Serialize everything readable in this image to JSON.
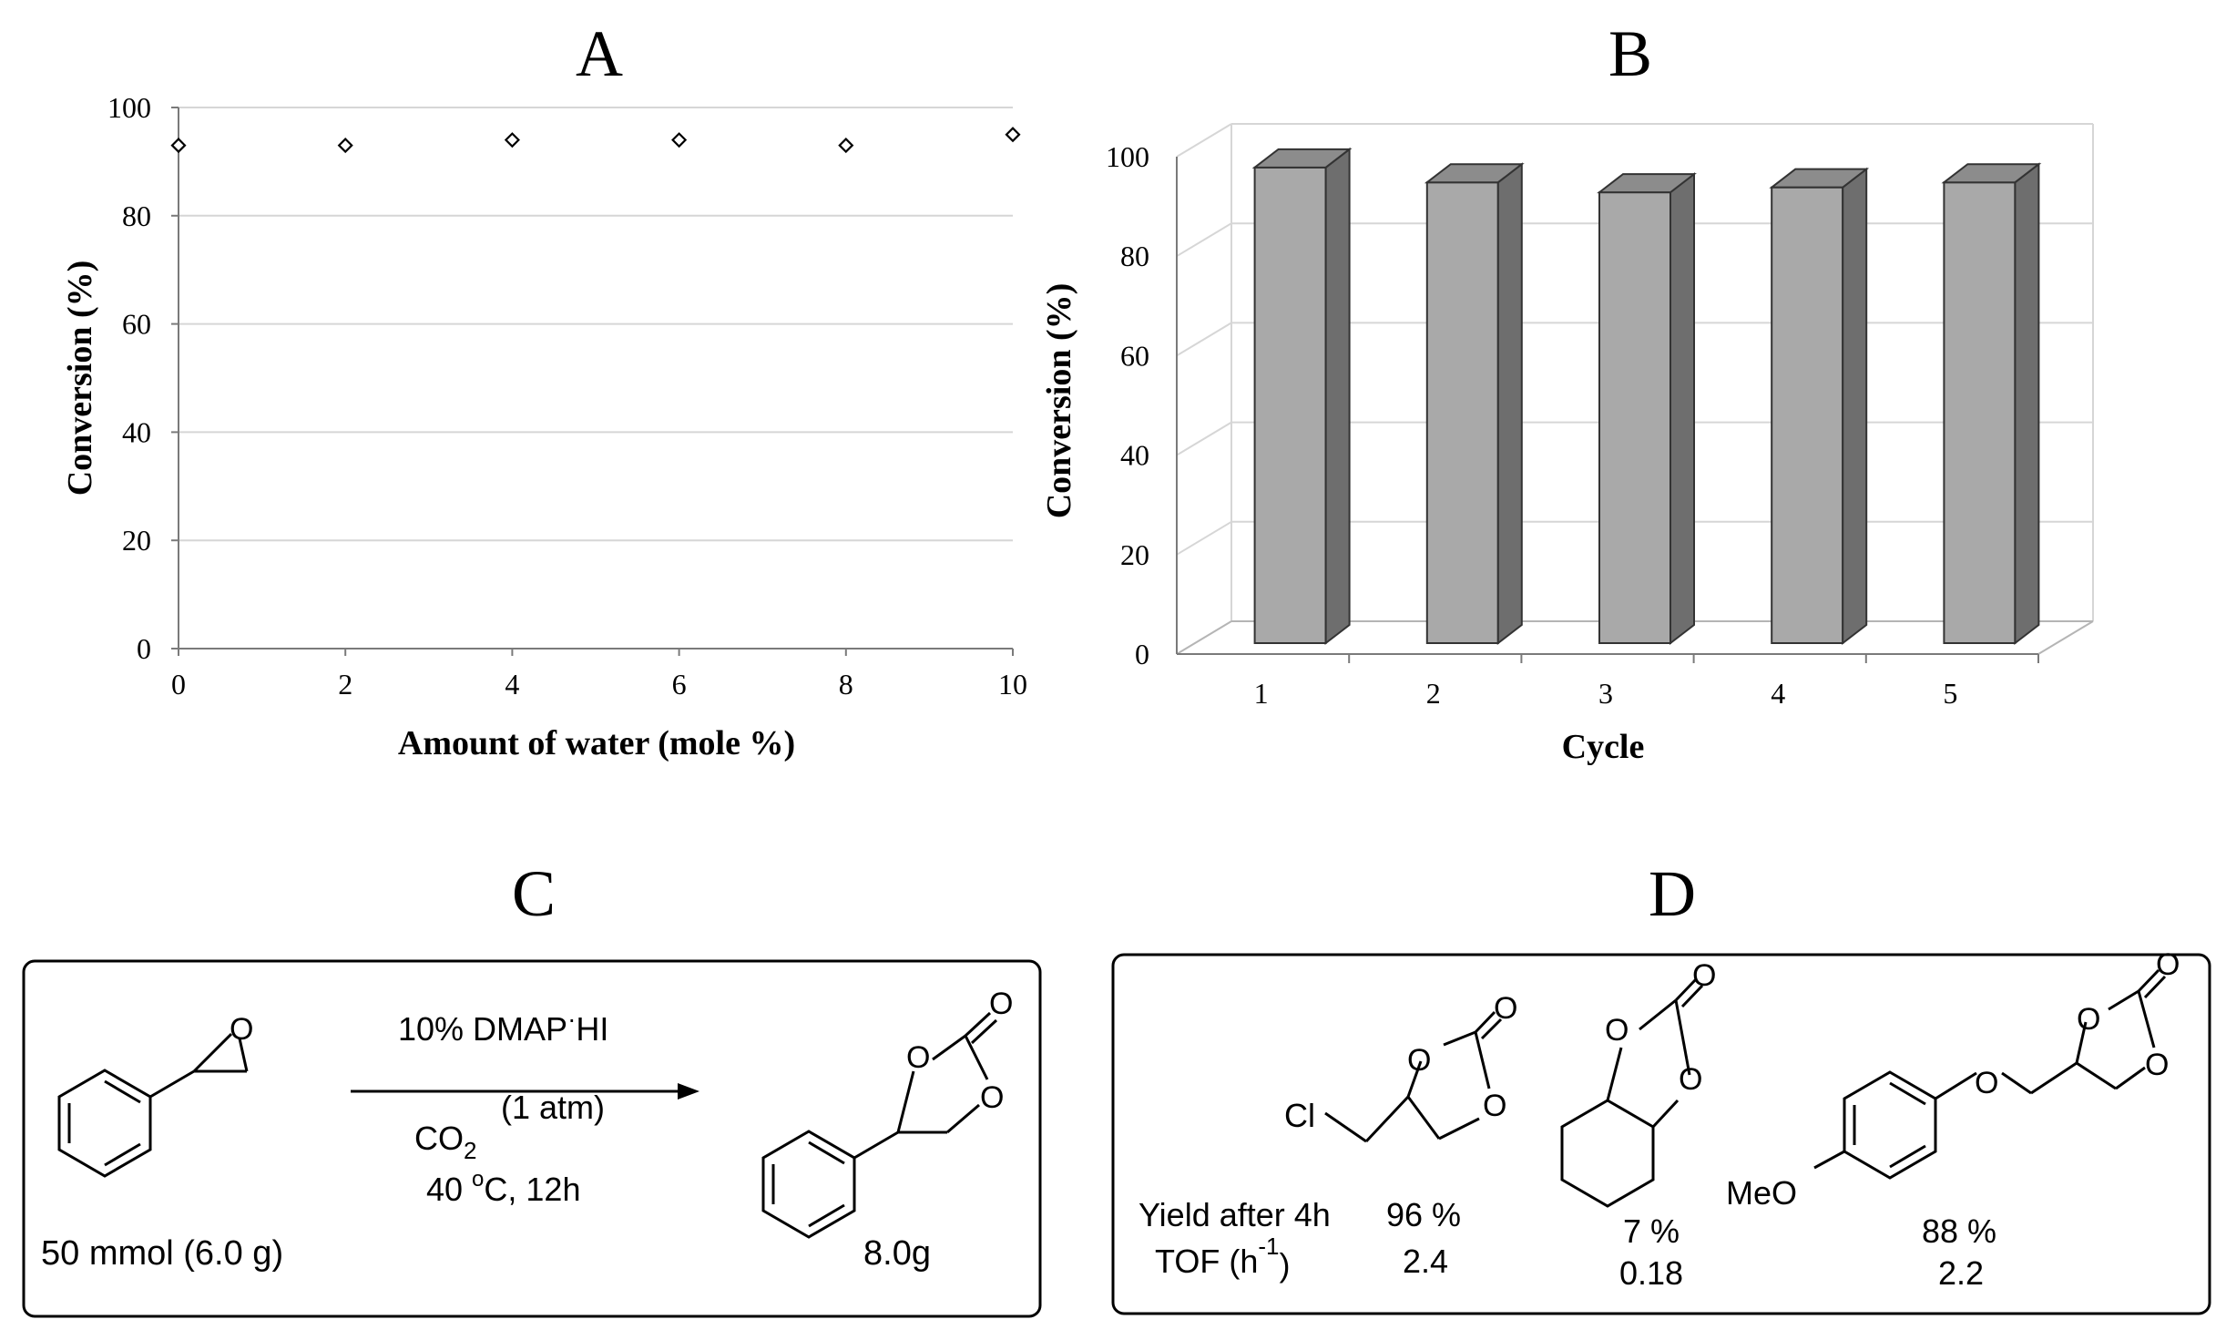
{
  "chart_data": [
    {
      "panel": "A",
      "type": "scatter",
      "xlabel": "Amount of  water (mole %)",
      "ylabel": "Conversion (%)",
      "xlim": [
        0,
        10
      ],
      "ylim": [
        0,
        100
      ],
      "xticks": [
        "0",
        "2",
        "4",
        "6",
        "8",
        "10"
      ],
      "yticks": [
        "0",
        "20",
        "40",
        "60",
        "80",
        "100"
      ],
      "grid": true,
      "x": [
        0,
        2,
        4,
        6,
        8,
        10
      ],
      "y": [
        93,
        93,
        94,
        94,
        93,
        95
      ]
    },
    {
      "panel": "B",
      "type": "bar",
      "xlabel": "Cycle",
      "ylabel": "Conversion (%)",
      "ylim": [
        0,
        100
      ],
      "yticks": [
        "0",
        "20",
        "40",
        "60",
        "80",
        "100"
      ],
      "grid": true,
      "categories": [
        "1",
        "2",
        "3",
        "4",
        "5"
      ],
      "values": [
        96,
        93,
        91,
        92,
        93
      ],
      "bar_front_color": "#a9a9a9",
      "bar_side_color": "#6e6e6e",
      "bar_top_color": "#8c8c8c"
    }
  ],
  "panel_c": {
    "letter": "C",
    "catalyst": "10% DMAP",
    "catalyst_dot": "·",
    "catalyst_salt": "HI",
    "pressure": "(1 atm)",
    "co2": "CO",
    "co2_sub": "2",
    "conditions_pre": "40 ",
    "conditions_deg": "o",
    "conditions_post": "C, 12h",
    "oxygen_label": "O",
    "substrate_amount": "50 mmol (6.0 g)",
    "product_amount": "8.0g"
  },
  "panel_d": {
    "letter": "D",
    "cl_label": "Cl",
    "meo_label": "MeO",
    "oxygen_label": "O",
    "row1_label": "Yield after 4h",
    "row2_label_pre": "TOF (h",
    "row2_sup": "-1",
    "row2_label_post": ")",
    "products": [
      {
        "yield": "96 %",
        "tof": "2.4"
      },
      {
        "yield": "7 %",
        "tof": "0.18"
      },
      {
        "yield": "88 %",
        "tof": "2.2"
      }
    ]
  },
  "panel_a_letter": "A",
  "panel_b_letter": "B"
}
